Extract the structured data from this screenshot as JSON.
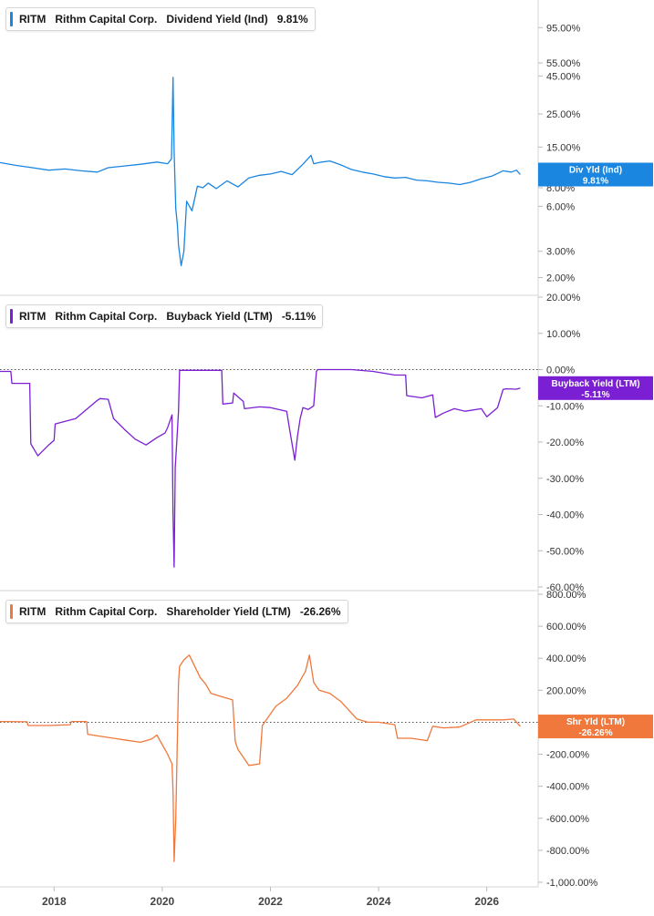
{
  "chart_data": [
    {
      "type": "line",
      "ticker": "RITM",
      "company": "Rithm Capital Corp.",
      "metric": "Dividend Yield (Ind)",
      "current_value": "9.81%",
      "badge_label": "Div Yld (Ind)",
      "color": "#1a86e0",
      "scale": "log",
      "ylim": [
        1.7,
        130
      ],
      "yticks": [
        2,
        3,
        6,
        8,
        15,
        25,
        45,
        55,
        95
      ],
      "ytick_labels": [
        "2.00%",
        "3.00%",
        "6.00%",
        "8.00%",
        "15.00%",
        "25.00%",
        "45.00%",
        "55.00%",
        "95.00%"
      ],
      "x": [
        2017.0,
        2017.3,
        2017.6,
        2017.9,
        2018.2,
        2018.5,
        2018.8,
        2019.0,
        2019.3,
        2019.6,
        2019.9,
        2020.1,
        2020.17,
        2020.2,
        2020.22,
        2020.25,
        2020.28,
        2020.3,
        2020.35,
        2020.4,
        2020.45,
        2020.55,
        2020.65,
        2020.75,
        2020.85,
        2021.0,
        2021.2,
        2021.4,
        2021.6,
        2021.8,
        2022.0,
        2022.2,
        2022.4,
        2022.6,
        2022.75,
        2022.8,
        2022.95,
        2023.1,
        2023.3,
        2023.5,
        2023.7,
        2023.9,
        2024.1,
        2024.3,
        2024.5,
        2024.7,
        2024.9,
        2025.1,
        2025.3,
        2025.5,
        2025.7,
        2025.9,
        2026.1,
        2026.3,
        2026.45,
        2026.55,
        2026.62
      ],
      "y": [
        11.8,
        11.3,
        10.9,
        10.5,
        10.7,
        10.4,
        10.2,
        10.9,
        11.2,
        11.5,
        11.9,
        11.6,
        12.5,
        44.0,
        14.0,
        5.8,
        4.5,
        3.3,
        2.4,
        3.0,
        6.5,
        5.6,
        8.2,
        8.0,
        8.6,
        7.9,
        8.9,
        8.1,
        9.3,
        9.7,
        9.9,
        10.3,
        9.8,
        11.5,
        13.2,
        11.6,
        11.9,
        12.1,
        11.4,
        10.6,
        10.2,
        9.9,
        9.5,
        9.3,
        9.4,
        9.0,
        8.9,
        8.7,
        8.6,
        8.4,
        8.7,
        9.2,
        9.6,
        10.4,
        10.2,
        10.5,
        9.81
      ],
      "grid": false,
      "legend": "top-left"
    },
    {
      "type": "line",
      "ticker": "RITM",
      "company": "Rithm Capital Corp.",
      "metric": "Buyback Yield (LTM)",
      "current_value": "-5.11%",
      "badge_label": "Buyback Yield (LTM)",
      "color": "#7b1fd4",
      "scale": "linear",
      "ylim": [
        -60,
        20
      ],
      "yticks": [
        20,
        10,
        0,
        -10,
        -20,
        -30,
        -40,
        -50,
        -60
      ],
      "ytick_labels": [
        "20.00%",
        "10.00%",
        "0.00%",
        "-10.00%",
        "-20.00%",
        "-30.00%",
        "-40.00%",
        "-50.00%",
        "-60.00%"
      ],
      "x": [
        2017.0,
        2017.2,
        2017.22,
        2017.55,
        2017.57,
        2017.65,
        2017.7,
        2017.9,
        2018.0,
        2018.02,
        2018.4,
        2018.8,
        2018.85,
        2019.0,
        2019.1,
        2019.3,
        2019.5,
        2019.7,
        2019.9,
        2020.05,
        2020.1,
        2020.18,
        2020.2,
        2020.22,
        2020.24,
        2020.27,
        2020.3,
        2020.32,
        2021.1,
        2021.12,
        2021.3,
        2021.32,
        2021.5,
        2021.52,
        2021.8,
        2022.0,
        2022.3,
        2022.35,
        2022.4,
        2022.45,
        2022.5,
        2022.55,
        2022.6,
        2022.7,
        2022.8,
        2022.85,
        2022.87,
        2023.5,
        2023.9,
        2024.3,
        2024.5,
        2024.52,
        2024.8,
        2025.0,
        2025.05,
        2025.2,
        2025.4,
        2025.6,
        2025.9,
        2026.0,
        2026.2,
        2026.3,
        2026.35,
        2026.55,
        2026.62
      ],
      "y": [
        -0.5,
        -0.5,
        -3.8,
        -3.8,
        -20.5,
        -22.5,
        -23.8,
        -20.8,
        -19.5,
        -15.0,
        -13.5,
        -8.5,
        -8.0,
        -8.2,
        -13.5,
        -16.5,
        -19.2,
        -20.8,
        -18.8,
        -17.5,
        -16.0,
        -12.5,
        -40.0,
        -54.5,
        -27.0,
        -19.5,
        -11.5,
        -0.2,
        -0.2,
        -9.5,
        -9.2,
        -6.5,
        -8.8,
        -10.8,
        -10.3,
        -10.5,
        -11.5,
        -16.0,
        -20.5,
        -25.0,
        -18.5,
        -13.5,
        -10.5,
        -11.0,
        -10.0,
        -0.5,
        0.0,
        0.0,
        -0.5,
        -1.5,
        -1.5,
        -7.2,
        -7.8,
        -7.0,
        -13.2,
        -12.0,
        -10.8,
        -11.5,
        -10.8,
        -13.0,
        -10.5,
        -5.5,
        -5.3,
        -5.4,
        -5.11
      ],
      "reference_line": 0,
      "grid": false,
      "legend": "top-left"
    },
    {
      "type": "line",
      "ticker": "RITM",
      "company": "Rithm Capital Corp.",
      "metric": "Shareholder Yield (LTM)",
      "current_value": "-26.26%",
      "badge_label": "Shr Yld (LTM)",
      "color": "#f0783c",
      "scale": "linear",
      "ylim": [
        -1000,
        800
      ],
      "yticks": [
        800,
        600,
        400,
        200,
        0,
        -200,
        -400,
        -600,
        -800,
        -1000
      ],
      "ytick_labels": [
        "800.00%",
        "600.00%",
        "400.00%",
        "200.00%",
        "0",
        "-200.00%",
        "-400.00%",
        "-600.00%",
        "-800.00%",
        "-1,000.00%"
      ],
      "x": [
        2017.0,
        2017.5,
        2017.52,
        2017.9,
        2018.3,
        2018.32,
        2018.6,
        2018.62,
        2019.0,
        2019.3,
        2019.6,
        2019.8,
        2019.9,
        2020.1,
        2020.18,
        2020.2,
        2020.22,
        2020.25,
        2020.3,
        2020.32,
        2020.4,
        2020.5,
        2020.7,
        2020.8,
        2020.9,
        2021.1,
        2021.3,
        2021.35,
        2021.4,
        2021.6,
        2021.8,
        2021.85,
        2022.1,
        2022.3,
        2022.5,
        2022.65,
        2022.72,
        2022.8,
        2022.9,
        2023.1,
        2023.3,
        2023.6,
        2023.8,
        2024.0,
        2024.3,
        2024.35,
        2024.6,
        2024.9,
        2025.0,
        2025.2,
        2025.5,
        2025.8,
        2026.1,
        2026.3,
        2026.5,
        2026.62
      ],
      "y": [
        5,
        3,
        -20,
        -20,
        -15,
        5,
        5,
        -75,
        -95,
        -110,
        -125,
        -105,
        -80,
        -200,
        -260,
        -430,
        -870,
        -600,
        250,
        350,
        390,
        420,
        280,
        240,
        180,
        160,
        140,
        -120,
        -170,
        -270,
        -260,
        -20,
        100,
        150,
        230,
        320,
        420,
        250,
        200,
        180,
        130,
        20,
        0,
        0,
        -15,
        -100,
        -100,
        -115,
        -25,
        -35,
        -30,
        15,
        15,
        15,
        20,
        -26.26
      ],
      "reference_line": 0,
      "grid": false,
      "legend": "top-left"
    }
  ],
  "x_axis": {
    "xlim": [
      2017.0,
      2026.95
    ],
    "ticks": [
      2018,
      2020,
      2022,
      2024,
      2026
    ],
    "tick_labels": [
      "2018",
      "2020",
      "2022",
      "2024",
      "2026"
    ]
  }
}
